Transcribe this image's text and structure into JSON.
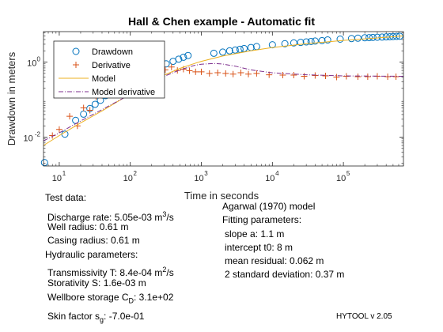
{
  "chart_data": {
    "type": "scatter",
    "title": "Hall & Chen example - Automatic fit",
    "xlabel": "Time in seconds",
    "ylabel": "Drawdown in meters",
    "xscale": "log",
    "yscale": "log",
    "xlim": [
      6,
      700000
    ],
    "ylim": [
      0.0017,
      6.5
    ],
    "x_ticks": [
      {
        "value": 10,
        "base": "10",
        "exp": "1"
      },
      {
        "value": 100,
        "base": "10",
        "exp": "2"
      },
      {
        "value": 1000,
        "base": "10",
        "exp": "3"
      },
      {
        "value": 10000,
        "base": "10",
        "exp": "4"
      },
      {
        "value": 100000,
        "base": "10",
        "exp": "5"
      }
    ],
    "y_ticks": [
      {
        "value": 0.01,
        "base": "10",
        "exp": "-2"
      },
      {
        "value": 1,
        "base": "10",
        "exp": "0"
      }
    ],
    "legend_position": "top-left",
    "series": [
      {
        "name": "Drawdown",
        "style": "circle",
        "color": "#0072BD",
        "x": [
          6.2,
          12,
          17,
          22,
          27,
          32,
          38,
          45,
          55,
          65,
          80,
          95,
          115,
          140,
          170,
          210,
          260,
          320,
          400,
          480,
          560,
          650,
          1500,
          2000,
          2500,
          3000,
          3500,
          4000,
          5000,
          6000,
          10000,
          15000,
          20000,
          25000,
          30000,
          35000,
          40000,
          50000,
          60000,
          90000,
          130000,
          160000,
          200000,
          230000,
          260000,
          300000,
          350000,
          400000,
          450000,
          500000,
          560000,
          620000
        ],
        "y": [
          0.0021,
          0.012,
          0.028,
          0.041,
          0.058,
          0.075,
          0.096,
          0.128,
          0.16,
          0.2,
          0.25,
          0.31,
          0.39,
          0.47,
          0.56,
          0.68,
          0.78,
          0.9,
          1.05,
          1.2,
          1.35,
          1.5,
          1.72,
          1.85,
          2.0,
          2.1,
          2.2,
          2.3,
          2.45,
          2.6,
          2.9,
          3.1,
          3.25,
          3.35,
          3.45,
          3.55,
          3.65,
          3.75,
          3.9,
          4.1,
          4.25,
          4.35,
          4.45,
          4.5,
          4.55,
          4.6,
          4.65,
          4.7,
          4.75,
          4.8,
          4.85,
          4.9
        ]
      },
      {
        "name": "Derivative",
        "style": "plus",
        "color": "#D95319",
        "x": [
          8,
          10,
          14,
          18,
          22,
          27,
          33,
          40,
          50,
          60,
          75,
          90,
          110,
          130,
          160,
          200,
          250,
          310,
          380,
          460,
          560,
          680,
          830,
          1000,
          1300,
          1700,
          2200,
          2800,
          3600,
          4600,
          6000,
          9000,
          14000,
          20000,
          28000,
          40000,
          56000,
          80000,
          110000,
          160000,
          220000,
          300000,
          420000,
          550000
        ],
        "y": [
          0.011,
          0.016,
          0.036,
          0.02,
          0.06,
          0.052,
          0.12,
          0.13,
          0.23,
          0.2,
          0.34,
          0.36,
          0.48,
          0.57,
          0.52,
          0.68,
          0.78,
          0.62,
          0.74,
          0.6,
          0.65,
          0.59,
          0.55,
          0.55,
          0.5,
          0.52,
          0.5,
          0.48,
          0.52,
          0.48,
          0.5,
          0.46,
          0.45,
          0.45,
          0.42,
          0.44,
          0.43,
          0.4,
          0.42,
          0.41,
          0.41,
          0.42,
          0.41,
          0.41
        ]
      },
      {
        "name": "Model",
        "style": "line",
        "color": "#EDB120",
        "x": [
          6,
          10,
          20,
          40,
          80,
          150,
          300,
          500,
          800,
          1000,
          2000,
          5000,
          10000,
          30000,
          100000,
          300000,
          700000
        ],
        "y": [
          0.006,
          0.011,
          0.024,
          0.05,
          0.11,
          0.22,
          0.45,
          0.68,
          0.92,
          1.05,
          1.45,
          2.0,
          2.45,
          3.1,
          3.8,
          4.4,
          5.0
        ]
      },
      {
        "name": "Model derivative",
        "style": "dashdot",
        "color": "#7E2F8E",
        "x": [
          6,
          10,
          20,
          40,
          80,
          150,
          300,
          500,
          800,
          1000,
          1500,
          2000,
          3000,
          5000,
          10000,
          30000,
          100000,
          700000
        ],
        "y": [
          0.008,
          0.013,
          0.027,
          0.054,
          0.11,
          0.21,
          0.42,
          0.62,
          0.82,
          0.88,
          0.92,
          0.89,
          0.78,
          0.62,
          0.52,
          0.46,
          0.43,
          0.42
        ]
      }
    ]
  },
  "test_data": {
    "heading": "Test data:",
    "discharge": {
      "prefix": "Discharge rate: 5.05e-03 m",
      "sup": "3",
      "suffix": "/s"
    },
    "well_radius": "Well radius: 0.61 m",
    "casing_radius": "Casing radius: 0.61 m"
  },
  "hydraulic": {
    "heading": "Hydraulic parameters:",
    "transmissivity": {
      "prefix": "Transmissivity T: 8.4e-04 m",
      "sup": "2",
      "suffix": "/s"
    },
    "storativity": "Storativity S: 1.6e-03 m",
    "wellbore": {
      "prefix": "Wellbore storage C",
      "sub": "D",
      "suffix": ": 3.1e+02"
    },
    "skin": {
      "prefix": "Skin factor s",
      "sub": "g",
      "suffix": ": -7.0e-01"
    }
  },
  "model_info": {
    "model": "Agarwal (1970) model",
    "fitting_heading": "Fitting parameters:",
    "slope": "slope a: 1.1 m",
    "intercept": "intercept t0: 8 m",
    "mean_residual": "mean residual: 0.062 m",
    "std_dev": "2 standard deviation: 0.37 m"
  },
  "version": "HYTOOL v 2.05"
}
